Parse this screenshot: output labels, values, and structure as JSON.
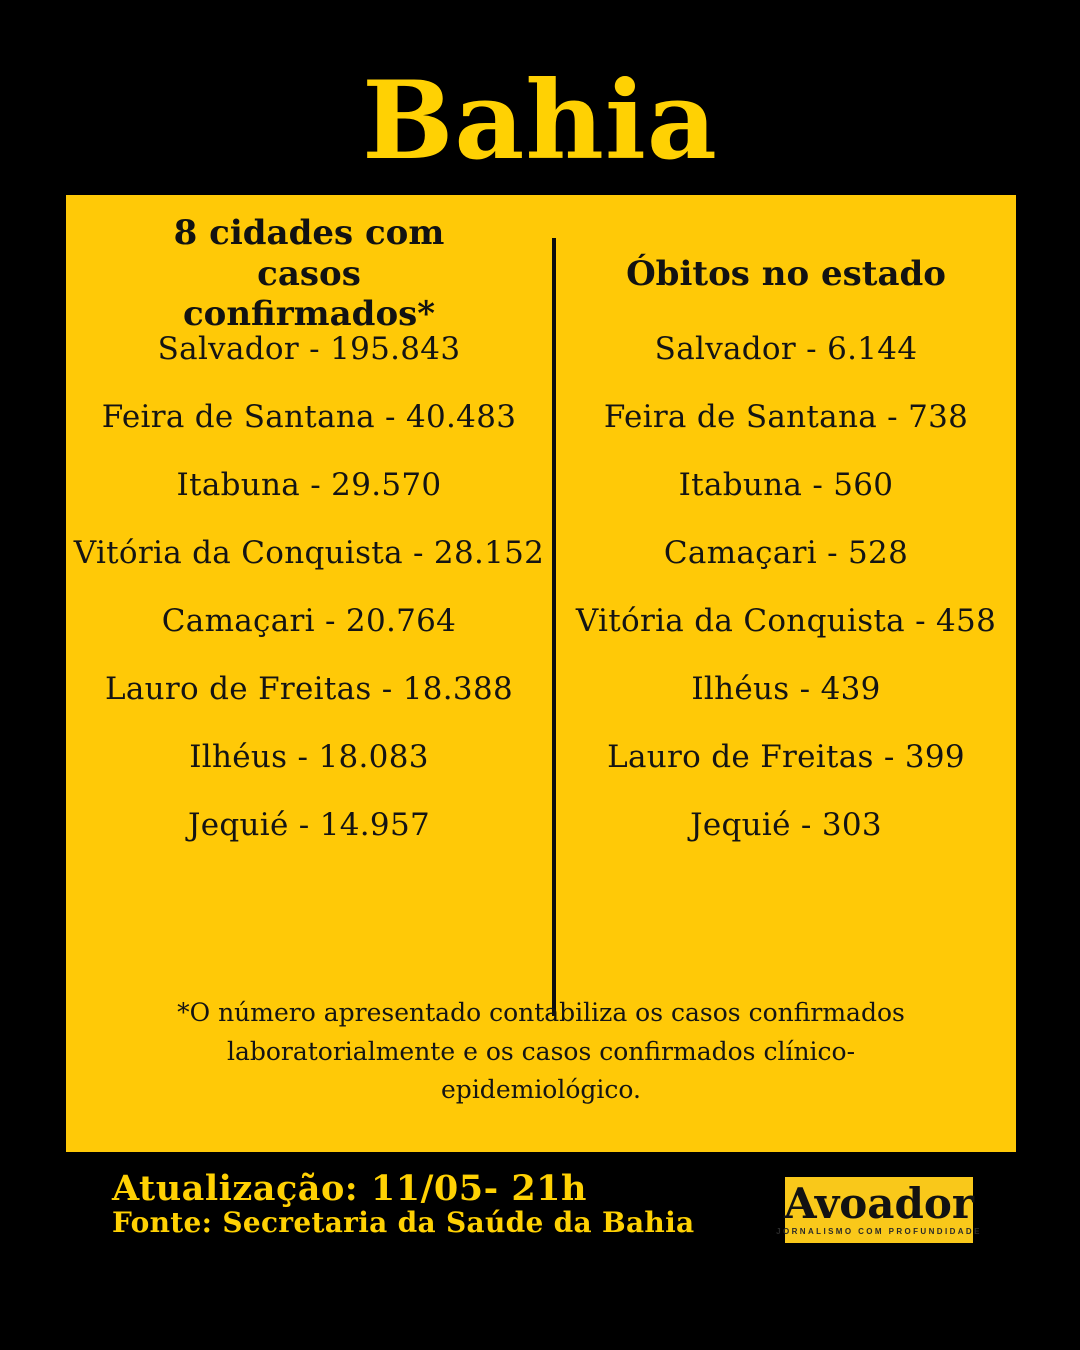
{
  "title": "Bahia",
  "panel": {
    "left": {
      "header": "8 cidades com casos confirmados*",
      "items": [
        "Salvador - 195.843",
        "Feira de Santana - 40.483",
        "Itabuna - 29.570",
        "Vitória da Conquista - 28.152",
        "Camaçari - 20.764",
        "Lauro de Freitas - 18.388",
        "Ilhéus - 18.083",
        "Jequié - 14.957"
      ]
    },
    "right": {
      "header": "Óbitos no estado",
      "items": [
        "Salvador - 6.144",
        "Feira de Santana - 738",
        "Itabuna - 560",
        "Camaçari - 528",
        "Vitória da Conquista - 458",
        "Ilhéus - 439",
        "Lauro de Freitas - 399",
        "Jequié - 303"
      ]
    },
    "footnote": "*O número apresentado contabiliza os casos confirmados laboratorialmente e os casos confirmados clínico-epidemiológico."
  },
  "footer": {
    "update": "Atualização: 11/05- 21h",
    "source": "Fonte: Secretaria da Saúde da Bahia",
    "logo": {
      "name": "Avoador",
      "tagline": "JORNALISMO COM PROFUNDIDADE"
    }
  },
  "colors": {
    "background": "#000000",
    "panel_yellow": "#FFC907",
    "accent_yellow": "#FFD103",
    "text_black": "#141414"
  },
  "chart_data": [
    {
      "type": "table",
      "title": "8 cidades com casos confirmados*",
      "categories": [
        "Salvador",
        "Feira de Santana",
        "Itabuna",
        "Vitória da Conquista",
        "Camaçari",
        "Lauro de Freitas",
        "Ilhéus",
        "Jequié"
      ],
      "values": [
        195843,
        40483,
        29570,
        28152,
        20764,
        18388,
        18083,
        14957
      ]
    },
    {
      "type": "table",
      "title": "Óbitos no estado",
      "categories": [
        "Salvador",
        "Feira de Santana",
        "Itabuna",
        "Camaçari",
        "Vitória da Conquista",
        "Ilhéus",
        "Lauro de Freitas",
        "Jequié"
      ],
      "values": [
        6144,
        738,
        560,
        528,
        458,
        439,
        399,
        303
      ]
    }
  ]
}
